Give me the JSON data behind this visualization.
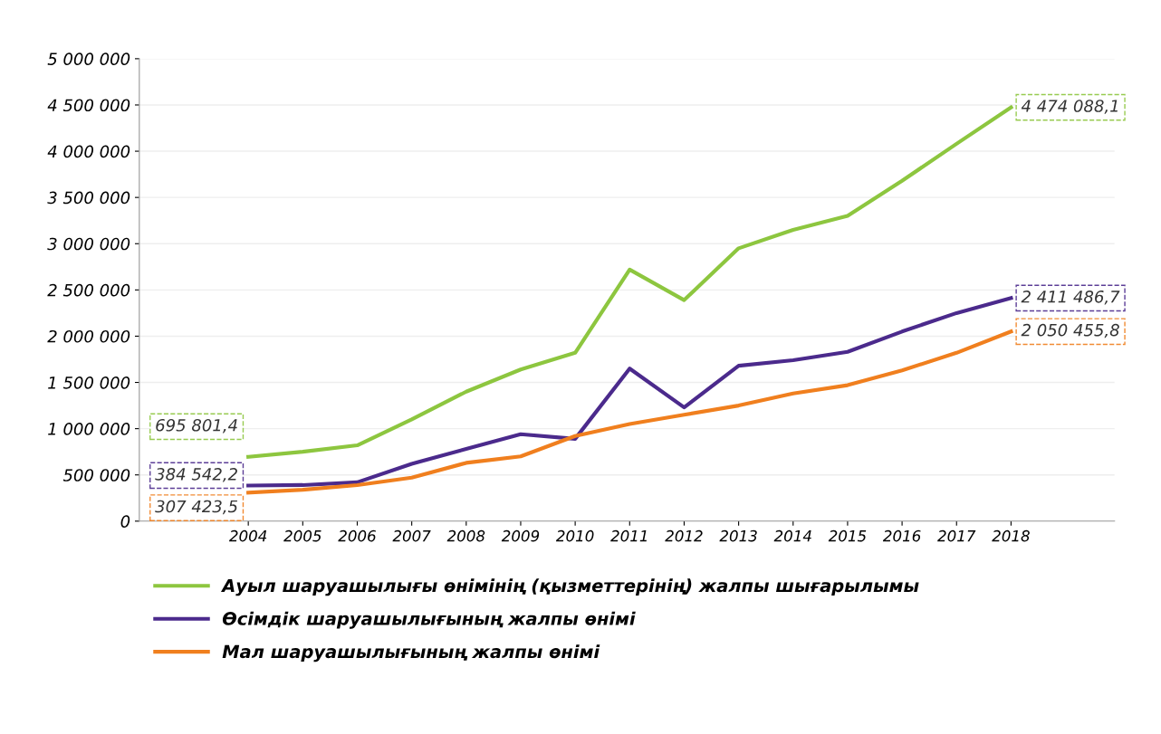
{
  "chart_data": {
    "type": "line",
    "categories": [
      "2004",
      "2005",
      "2006",
      "2007",
      "2008",
      "2009",
      "2010",
      "2011",
      "2012",
      "2013",
      "2014",
      "2015",
      "2016",
      "2017",
      "2018"
    ],
    "series": [
      {
        "name": "Ауыл шаруашылығы өнімінің (қызметтерінің) жалпы шығарылымы",
        "color": "#8dc63f",
        "values": [
          695801.4,
          750000,
          820000,
          1100000,
          1400000,
          1640000,
          1820000,
          2720000,
          2390000,
          2950000,
          3150000,
          3300000,
          3680000,
          4080000,
          4474088.1
        ],
        "value_labels": [
          "695 801,4",
          null,
          null,
          null,
          null,
          null,
          null,
          null,
          null,
          null,
          null,
          null,
          null,
          null,
          "4 474 088,1"
        ]
      },
      {
        "name": "Өсімдік шаруашылығының жалпы өнімі",
        "color": "#4b2a8c",
        "values": [
          384542.2,
          390000,
          420000,
          620000,
          780000,
          940000,
          890000,
          1650000,
          1230000,
          1680000,
          1740000,
          1830000,
          2050000,
          2250000,
          2411486.7
        ],
        "value_labels": [
          "384 542,2",
          null,
          null,
          null,
          null,
          null,
          null,
          null,
          null,
          null,
          null,
          null,
          null,
          null,
          "2 411 486,7"
        ]
      },
      {
        "name": "Мал шаруашылығының жалпы өнімі",
        "color": "#f07f1e",
        "values": [
          307423.5,
          340000,
          390000,
          470000,
          630000,
          700000,
          920000,
          1050000,
          1150000,
          1250000,
          1380000,
          1470000,
          1630000,
          1820000,
          2050455.8
        ],
        "value_labels": [
          "307 423,5",
          null,
          null,
          null,
          null,
          null,
          null,
          null,
          null,
          null,
          null,
          null,
          null,
          null,
          "2 050 455,8"
        ]
      }
    ],
    "ylim": [
      0,
      5000000
    ],
    "yticks": [
      {
        "value": 0,
        "label": "0"
      },
      {
        "value": 500000,
        "label": "500 000"
      },
      {
        "value": 1000000,
        "label": "1 000 000"
      },
      {
        "value": 1500000,
        "label": "1 500 000"
      },
      {
        "value": 2000000,
        "label": "2 000 000"
      },
      {
        "value": 2500000,
        "label": "2 500 000"
      },
      {
        "value": 3000000,
        "label": "3 000 000"
      },
      {
        "value": 3500000,
        "label": "3 500 000"
      },
      {
        "value": 4000000,
        "label": "4 000 000"
      },
      {
        "value": 4500000,
        "label": "4 500 000"
      },
      {
        "value": 5000000,
        "label": "5 000 000"
      }
    ],
    "grid": "y",
    "legend": "bottom",
    "marker": "none",
    "line_style": "solid"
  }
}
